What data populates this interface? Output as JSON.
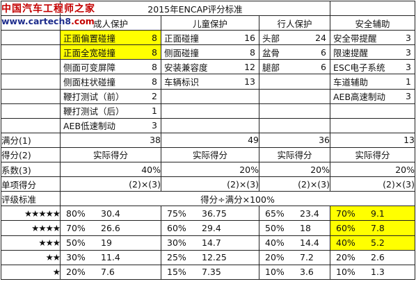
{
  "watermark": {
    "line1": "中国汽车工程师之家",
    "line2_prefix": "www.cartech8",
    "line2_suffix": ".com"
  },
  "title": "2015年ENCAP评分标准",
  "headers": {
    "adult": "成人保护",
    "child": "儿童保护",
    "pedestrian": "行人保护",
    "safety": "安全辅助"
  },
  "items": {
    "adult": [
      {
        "name": "正面偏置碰撞",
        "value": "8",
        "highlight": true
      },
      {
        "name": "正面全宽碰撞",
        "value": "8",
        "highlight": true
      },
      {
        "name": "侧面可变屏障",
        "value": "8"
      },
      {
        "name": "侧面柱状碰撞",
        "value": "8"
      },
      {
        "name": "鞭打测试（前）",
        "value": "2"
      },
      {
        "name": "鞭打测试（后）",
        "value": "1"
      },
      {
        "name": "AEB低速制动",
        "value": "3"
      }
    ],
    "child": [
      {
        "name": "正面碰撞",
        "value": "16"
      },
      {
        "name": "侧面碰撞",
        "value": "8"
      },
      {
        "name": "安装兼容度",
        "value": "12"
      },
      {
        "name": "车辆标识",
        "value": "13"
      }
    ],
    "pedestrian": [
      {
        "name": "头部",
        "value": "24"
      },
      {
        "name": "盆骨",
        "value": "6"
      },
      {
        "name": "腿部",
        "value": "6"
      }
    ],
    "safety": [
      {
        "name": "安全带提醒",
        "value": "3"
      },
      {
        "name": "限速提醒",
        "value": "3"
      },
      {
        "name": "ESC电子系统",
        "value": "3"
      },
      {
        "name": "车道辅助",
        "value": "1"
      },
      {
        "name": "AEB高速制动",
        "value": "3"
      }
    ]
  },
  "rows": {
    "max": {
      "label": "满分(1)",
      "values": [
        "38",
        "49",
        "36",
        "13"
      ]
    },
    "score": {
      "label": "得分(2)",
      "values": [
        "实际得分",
        "实际得分",
        "实际得分",
        "实际得分"
      ]
    },
    "coef": {
      "label": "系数(3)",
      "values": [
        "40%",
        "20%",
        "20%",
        "20%"
      ]
    },
    "single": {
      "label": "单项得分",
      "values": [
        "(2)×(3)",
        "(2)×(3)",
        "(2)×(3)",
        "(2)×(3)"
      ]
    },
    "rating": {
      "label": "评级标准",
      "formula": "得分÷满分×100%"
    }
  },
  "ratings": [
    {
      "stars": "★★★★★",
      "values": [
        [
          "80%",
          "30.4"
        ],
        [
          "75%",
          "36.75"
        ],
        [
          "65%",
          "23.4"
        ],
        [
          "70%",
          "9.1"
        ]
      ],
      "highlight_safety": true
    },
    {
      "stars": "★★★★",
      "values": [
        [
          "70%",
          "26.6"
        ],
        [
          "60%",
          "29.4"
        ],
        [
          "50%",
          "18"
        ],
        [
          "60%",
          "7.8"
        ]
      ],
      "highlight_safety": true
    },
    {
      "stars": "★★★",
      "values": [
        [
          "50%",
          "19"
        ],
        [
          "30%",
          "14.7"
        ],
        [
          "40%",
          "14.4"
        ],
        [
          "40%",
          "5.2"
        ]
      ],
      "highlight_safety": true
    },
    {
      "stars": "★★",
      "values": [
        [
          "30%",
          "11.4"
        ],
        [
          "25%",
          "12.25"
        ],
        [
          "20%",
          "7.2"
        ],
        [
          "20%",
          "2.6"
        ]
      ]
    },
    {
      "stars": "★",
      "values": [
        [
          "20%",
          "7.6"
        ],
        [
          "15%",
          "7.35"
        ],
        [
          "10%",
          "3.6"
        ],
        [
          "10%",
          "1.3"
        ]
      ]
    }
  ]
}
